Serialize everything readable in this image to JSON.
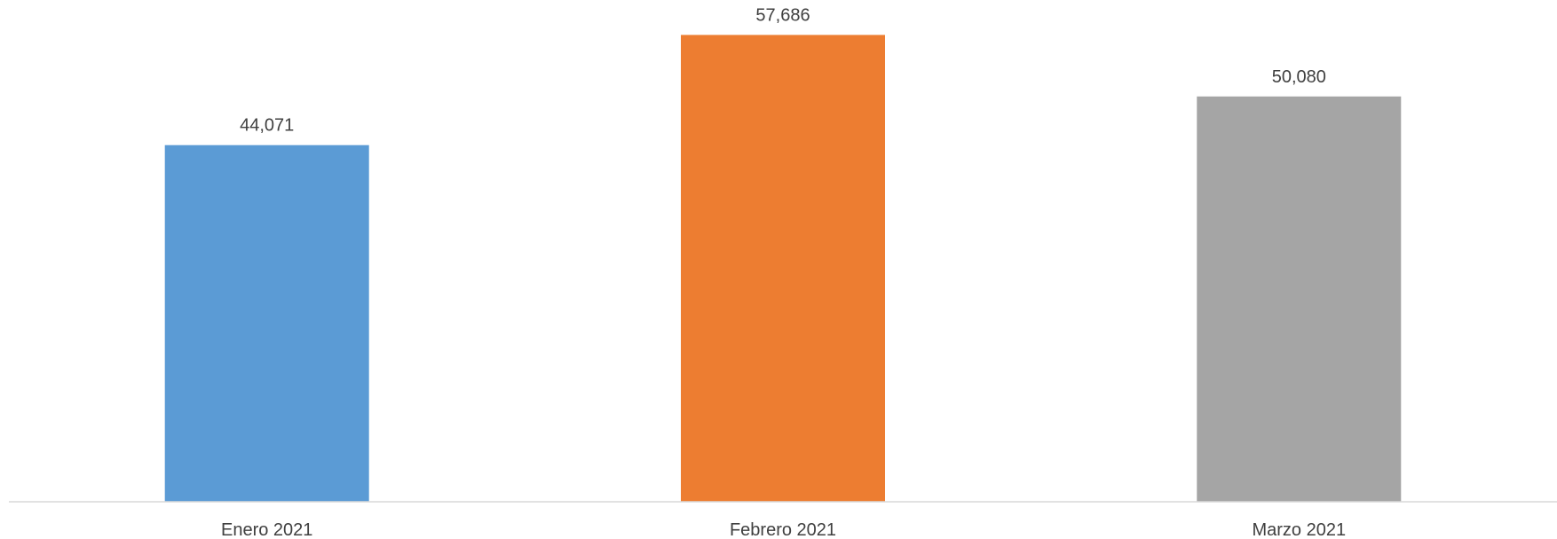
{
  "chart_data": {
    "type": "bar",
    "title": "",
    "xlabel": "",
    "ylabel": "",
    "categories": [
      "Enero 2021",
      "Febrero 2021",
      "Marzo 2021"
    ],
    "values": [
      44071,
      57686,
      50080
    ],
    "value_labels": [
      "44,071",
      "57,686",
      "50,080"
    ],
    "colors": [
      "#5B9BD5",
      "#ED7D31",
      "#A5A5A5"
    ],
    "ylim": [
      0,
      62000
    ],
    "grid": false,
    "legend": "none"
  }
}
